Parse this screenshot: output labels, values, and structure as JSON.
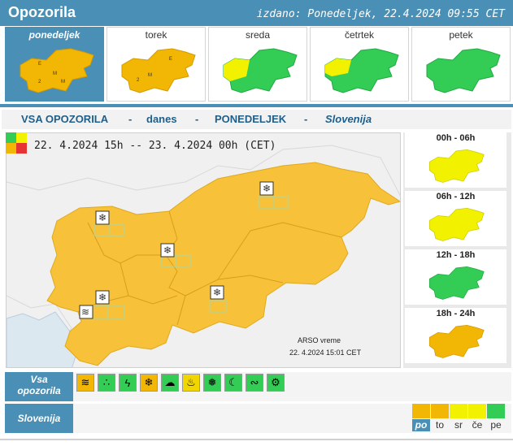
{
  "header": {
    "title": "Opozorila",
    "issued": "izdano: Ponedeljek, 22.4.2024 09:55 CET"
  },
  "tabs": [
    {
      "label": "ponedeljek",
      "active": true,
      "color": "#f2b705"
    },
    {
      "label": "torek",
      "active": false,
      "color": "#f2b705"
    },
    {
      "label": "sreda",
      "active": false,
      "color": "#33cc55"
    },
    {
      "label": "četrtek",
      "active": false,
      "color": "#33cc55"
    },
    {
      "label": "petek",
      "active": false,
      "color": "#33cc55"
    }
  ],
  "titlebar": {
    "part1": "VSA OPOZORILA",
    "dash1": "-",
    "part2": "danes",
    "dash2": "-",
    "part3": "PONEDELJEK",
    "dash3": "-",
    "part4": "Slovenija"
  },
  "main_map": {
    "period": "22. 4.2024 15h -- 23. 4.2024 00h   (CET)",
    "source": "ARSO vreme",
    "timestamp": "22. 4.2024  15:01 CET",
    "fill_color": "#f7c23a"
  },
  "periods": [
    {
      "label": "00h - 06h",
      "color": "#f2f200"
    },
    {
      "label": "06h - 12h",
      "color": "#f2f200"
    },
    {
      "label": "12h - 18h",
      "color": "#33cc55"
    },
    {
      "label": "18h - 24h",
      "color": "#f2b705"
    }
  ],
  "rows": {
    "all_label_1": "Vsa",
    "all_label_2": "opozorila",
    "region_label": "Slovenija"
  },
  "warning_icons": [
    {
      "name": "wind-icon",
      "glyph": "≋",
      "level": "o"
    },
    {
      "name": "rain-icon",
      "glyph": "∴",
      "level": "g"
    },
    {
      "name": "thunderstorm-icon",
      "glyph": "ϟ",
      "level": "g"
    },
    {
      "name": "snow-icon",
      "glyph": "❄",
      "level": "o"
    },
    {
      "name": "flood-icon",
      "glyph": "☁",
      "level": "g"
    },
    {
      "name": "high-temperature-icon",
      "glyph": "♨",
      "level": "y"
    },
    {
      "name": "low-temperature-icon",
      "glyph": "❅",
      "level": "g"
    },
    {
      "name": "fog-icon",
      "glyph": "☾",
      "level": "g"
    },
    {
      "name": "coastal-event-icon",
      "glyph": "∾",
      "level": "g"
    },
    {
      "name": "forest-fire-icon",
      "glyph": "⚙",
      "level": "g"
    }
  ],
  "levels": [
    {
      "label": "po",
      "color": "#f2b705",
      "selected": true
    },
    {
      "label": "to",
      "color": "#f2b705",
      "selected": false
    },
    {
      "label": "sr",
      "color": "#f2f200",
      "selected": false
    },
    {
      "label": "če",
      "color": "#f2f200",
      "selected": false
    },
    {
      "label": "pe",
      "color": "#33cc55",
      "selected": false
    }
  ]
}
